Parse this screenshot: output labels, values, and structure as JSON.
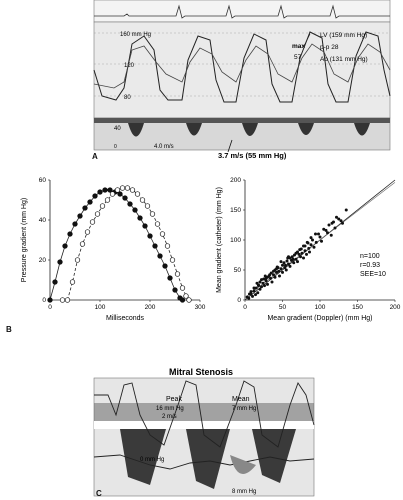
{
  "panelA": {
    "letter": "A",
    "scale_top": "160 mm Hg",
    "scale_mid": "120",
    "scale_low": "80",
    "scale_doppler": "40",
    "legend_lv": "LV (159 mm Hg)",
    "legend_pp": "p-p 28",
    "legend_ao": "Ao (131 mm Hg)",
    "max_label": "max",
    "max_value": "57",
    "velocity_small": "4.0 m/s",
    "velocity_main": "3.7 m/s (55 mm Hg)",
    "baseline_marker": "0"
  },
  "panelB": {
    "letter": "B"
  },
  "panelC": {
    "letter": "C",
    "title": "Mitral Stenosis",
    "peak_label": "Peak",
    "peak_value": "16 mm Hg",
    "scale_velocity": "2 m/s",
    "mean_label": "Mean",
    "mean_value": "7 mm Hg",
    "left_pressure": "0 mm Hg",
    "bottom_pressure": "8 mm Hg"
  },
  "chart_data": [
    {
      "type": "line",
      "xlabel": "Milliseconds",
      "ylabel": "Pressure gradient (mm Hg)",
      "xlim": [
        0,
        300
      ],
      "ylim": [
        0,
        60
      ],
      "xticks": [
        0,
        100,
        200,
        300
      ],
      "yticks": [
        0,
        20,
        40,
        60
      ],
      "series": [
        {
          "marker": "filled",
          "x": [
            0,
            10,
            20,
            30,
            40,
            50,
            60,
            70,
            80,
            90,
            100,
            110,
            120,
            130,
            140,
            150,
            160,
            170,
            180,
            190,
            200,
            210,
            220,
            230,
            240,
            250,
            260,
            265
          ],
          "y": [
            0,
            9,
            19,
            27,
            33,
            38,
            42,
            46,
            49,
            52,
            54,
            55,
            55,
            54,
            53,
            51,
            48,
            45,
            41,
            37,
            32,
            27,
            22,
            17,
            11,
            5,
            1,
            0
          ]
        },
        {
          "marker": "open",
          "x": [
            25,
            35,
            45,
            55,
            65,
            75,
            85,
            95,
            105,
            115,
            125,
            135,
            145,
            155,
            165,
            175,
            185,
            195,
            205,
            215,
            225,
            235,
            245,
            255,
            265,
            272,
            278
          ],
          "y": [
            0,
            0,
            9,
            20,
            28,
            34,
            39,
            43,
            47,
            50,
            53,
            55,
            56,
            56,
            55,
            53,
            50,
            47,
            43,
            38,
            33,
            27,
            20,
            13,
            6,
            2,
            0
          ]
        }
      ]
    },
    {
      "type": "scatter",
      "xlabel": "Mean gradient (Doppler) (mm Hg)",
      "ylabel": "Mean gradient (catheter) (mm Hg)",
      "xlim": [
        0,
        200
      ],
      "ylim": [
        0,
        200
      ],
      "xticks": [
        0,
        50,
        100,
        150,
        200
      ],
      "yticks": [
        0,
        50,
        100,
        150,
        200
      ],
      "annotations": [
        "n=100",
        "r=0.93",
        "SEE=10"
      ],
      "x": [
        3,
        5,
        8,
        10,
        12,
        14,
        15,
        17,
        18,
        20,
        20,
        22,
        24,
        25,
        26,
        28,
        30,
        30,
        32,
        34,
        35,
        36,
        38,
        40,
        40,
        42,
        43,
        45,
        46,
        48,
        50,
        50,
        52,
        53,
        55,
        56,
        58,
        60,
        60,
        62,
        63,
        65,
        66,
        68,
        70,
        70,
        72,
        74,
        75,
        76,
        78,
        80,
        80,
        82,
        84,
        85,
        86,
        88,
        90,
        92,
        95,
        98,
        100,
        105,
        110,
        112,
        115,
        118,
        120,
        125,
        130,
        135,
        8,
        12,
        16,
        22,
        27,
        33,
        38,
        44,
        48,
        54,
        58,
        64,
        68,
        73,
        78,
        83,
        88,
        94,
        102,
        108,
        116,
        122,
        128,
        6,
        18,
        28,
        42,
        57
      ],
      "y": [
        5,
        3,
        10,
        6,
        15,
        9,
        20,
        12,
        25,
        18,
        30,
        22,
        28,
        35,
        24,
        32,
        38,
        26,
        40,
        36,
        45,
        30,
        42,
        50,
        38,
        46,
        55,
        48,
        40,
        52,
        58,
        46,
        62,
        54,
        50,
        65,
        60,
        70,
        56,
        66,
        72,
        62,
        75,
        68,
        80,
        64,
        76,
        72,
        85,
        78,
        70,
        90,
        82,
        76,
        95,
        86,
        80,
        92,
        100,
        88,
        96,
        110,
        105,
        118,
        112,
        125,
        108,
        130,
        120,
        135,
        128,
        150,
        14,
        20,
        28,
        34,
        40,
        42,
        48,
        54,
        64,
        58,
        72,
        68,
        78,
        84,
        90,
        96,
        104,
        110,
        98,
        116,
        128,
        138,
        132,
        10,
        24,
        36,
        52,
        70
      ]
    }
  ]
}
